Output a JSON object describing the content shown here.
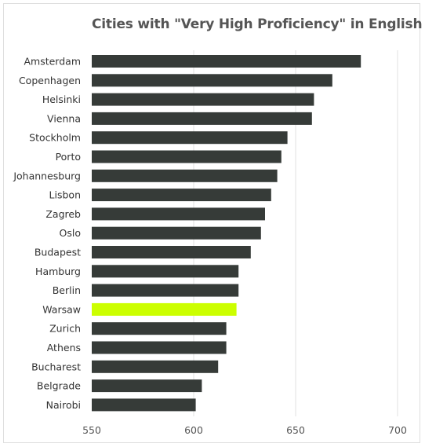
{
  "chart_data": {
    "type": "bar",
    "orientation": "horizontal",
    "title": "Cities with \"Very High Proficiency\" in English",
    "xlabel": "",
    "ylabel": "",
    "xlim": [
      550,
      700
    ],
    "xticks": [
      550,
      600,
      650,
      700
    ],
    "grid": true,
    "categories": [
      "Amsterdam",
      "Copenhagen",
      "Helsinki",
      "Vienna",
      "Stockholm",
      "Porto",
      "Johannesburg",
      "Lisbon",
      "Zagreb",
      "Oslo",
      "Budapest",
      "Hamburg",
      "Berlin",
      "Warsaw",
      "Zurich",
      "Athens",
      "Bucharest",
      "Belgrade",
      "Nairobi"
    ],
    "values": [
      682,
      668,
      659,
      658,
      646,
      643,
      641,
      638,
      635,
      633,
      628,
      622,
      622,
      621,
      616,
      616,
      612,
      604,
      601
    ],
    "highlight": "Warsaw",
    "colors": {
      "bar": "#363b38",
      "highlight": "#ccff00",
      "grid": "#e0e0e0",
      "text": "#333333",
      "title": "#555555"
    }
  }
}
